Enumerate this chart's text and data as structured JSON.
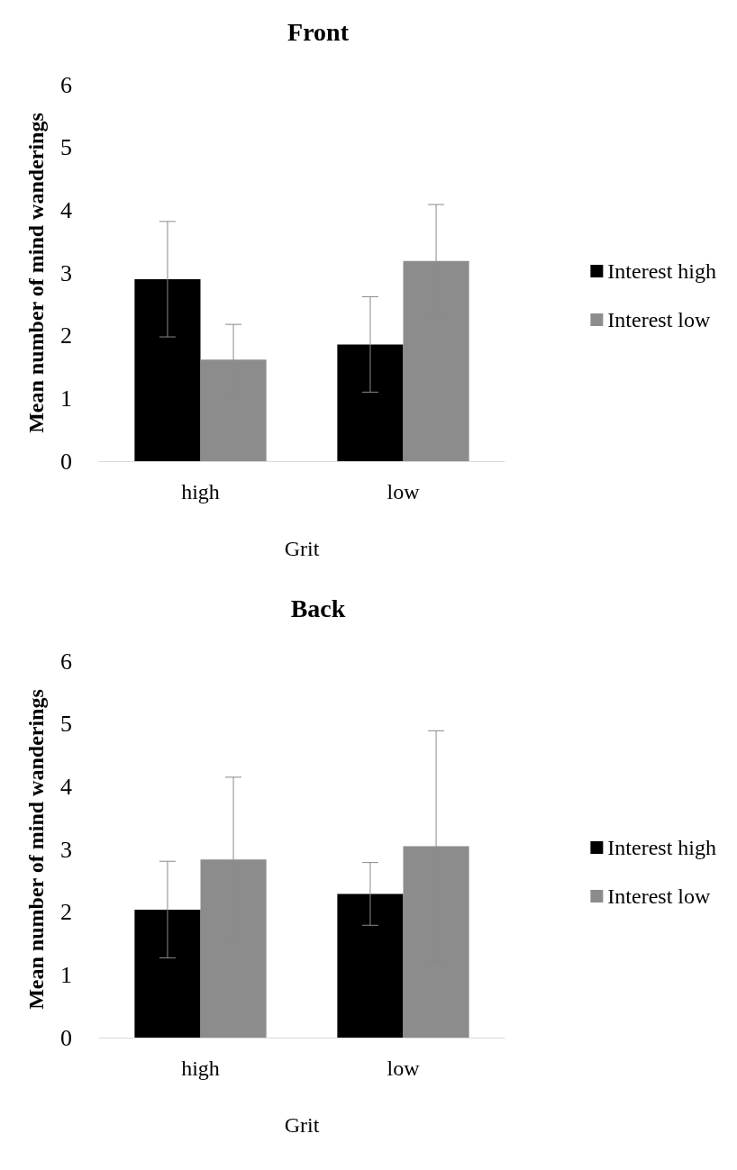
{
  "chart_data": [
    {
      "type": "bar",
      "title": "Front",
      "xlabel": "Grit",
      "ylabel": "Mean number of mind wanderings",
      "categories": [
        "high",
        "low"
      ],
      "ylim": [
        0,
        6
      ],
      "yticks": [
        0,
        1,
        2,
        3,
        4,
        5,
        6
      ],
      "grid": false,
      "legend": "right",
      "series": [
        {
          "name": "Interest high",
          "color": "#000000",
          "values": [
            2.9,
            1.86
          ],
          "errors": [
            0.92,
            0.76
          ]
        },
        {
          "name": "Interest low",
          "color": "#8c8c8c",
          "values": [
            1.62,
            3.19
          ],
          "errors": [
            0.56,
            0.9
          ]
        }
      ]
    },
    {
      "type": "bar",
      "title": "Back",
      "xlabel": "Grit",
      "ylabel": "Mean number of mind wanderings",
      "categories": [
        "high",
        "low"
      ],
      "ylim": [
        0,
        6
      ],
      "yticks": [
        0,
        1,
        2,
        3,
        4,
        5,
        6
      ],
      "grid": false,
      "legend": "right",
      "series": [
        {
          "name": "Interest high",
          "color": "#000000",
          "values": [
            2.04,
            2.29
          ],
          "errors": [
            0.77,
            0.5
          ]
        },
        {
          "name": "Interest low",
          "color": "#8c8c8c",
          "values": [
            2.84,
            3.05
          ],
          "errors": [
            1.31,
            1.84
          ]
        }
      ]
    }
  ]
}
